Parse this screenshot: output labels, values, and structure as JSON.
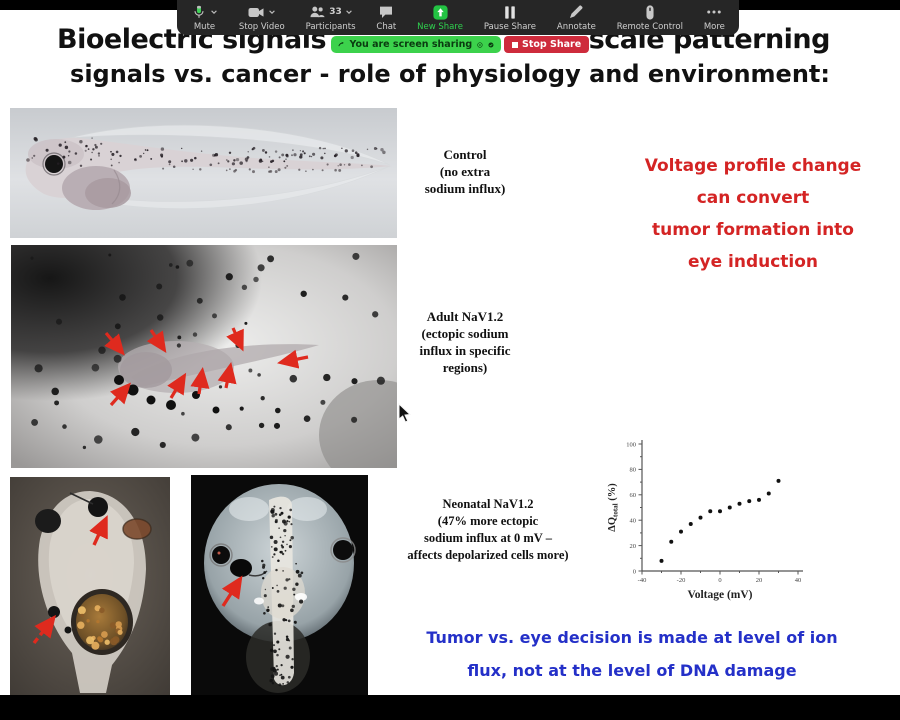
{
  "toolbar": {
    "items": [
      {
        "label": "Mute"
      },
      {
        "label": "Stop Video"
      },
      {
        "label": "Participants",
        "count": "33"
      },
      {
        "label": "Chat"
      },
      {
        "label": "New Share"
      },
      {
        "label": "Pause Share"
      },
      {
        "label": "Annotate"
      },
      {
        "label": "Remote Control"
      },
      {
        "label": "More"
      }
    ],
    "colors": {
      "background": "#262626",
      "label": "#cfcfcf",
      "new_share_green": "#2fd14f"
    }
  },
  "share_banner": {
    "message": "You are screen sharing",
    "stop_label": "Stop Share",
    "colors": {
      "banner_green": "#3cd24c",
      "stop_red": "#ce2b3c"
    }
  },
  "icons": {
    "microphone-icon": "svg-mic (green level)",
    "chevron-down-icon": "⌄",
    "video-camera-icon": "svg-camera",
    "participants-icon": "svg-two-people",
    "chat-bubble-icon": "svg-bubble",
    "share-screen-icon": "svg-green-square-up-arrow",
    "pause-icon": "❚❚",
    "pencil-icon": "svg-pencil",
    "remote-mouse-icon": "svg-mouse",
    "ellipsis-icon": "•••",
    "sharing-swoosh-icon": "svg-curved-arrow",
    "record-dot-icon": "◎",
    "check-circle-icon": "✔",
    "stop-square-icon": "■",
    "mouse-cursor": "svg-arrow-pointer"
  },
  "slide": {
    "title_line1_left": "Bioelectric signals",
    "title_line1_right": "-scale patterning",
    "title_line2": "signals vs. cancer - role of physiology and environment:",
    "control_label": "Control\n(no extra\nsodium influx)",
    "adult_label": "Adult NaV1.2\n(ectopic sodium\ninflux in specific\nregions)",
    "neonatal_label": "Neonatal NaV1.2\n(47% more ectopic\nsodium influx at 0 mV –\naffects depolarized cells more)",
    "red_note": "Voltage profile change\ncan convert\ntumor formation into\neye induction",
    "blue_note": "Tumor vs. eye decision is made at level of ion\nflux, not at the level of DNA damage",
    "colors": {
      "red_note": "#d42424",
      "blue_note": "#2430c8"
    },
    "images": [
      {
        "name": "tadpole-side-view",
        "description_visible": "control tadpole photo"
      },
      {
        "name": "melanocyte-field-with-arrows",
        "description_visible": "tissue with red arrows"
      },
      {
        "name": "tadpole-head-ectopic-tumor",
        "description_visible": "head with golden mass, red arrows"
      },
      {
        "name": "tadpole-head-dorsal-ectopic-eye",
        "description_visible": "dorsal head, red arrow"
      }
    ]
  },
  "chart_data": {
    "type": "scatter",
    "x": [
      -30,
      -25,
      -20,
      -15,
      -10,
      -5,
      0,
      5,
      10,
      15,
      20,
      25,
      30
    ],
    "y": [
      8,
      23,
      31,
      37,
      42,
      47,
      47,
      50,
      53,
      55,
      56,
      61,
      71
    ],
    "xlabel": "Voltage (mV)",
    "ylabel_delta": "ΔQ",
    "ylabel_sub": "total",
    "ylabel_unit": " (%)",
    "xlim": [
      -40,
      40
    ],
    "ylim": [
      0,
      100
    ],
    "xticks": [
      -40,
      -20,
      0,
      20,
      40
    ],
    "yticks": [
      0,
      20,
      40,
      60,
      80,
      100
    ],
    "grid": false,
    "legend": false,
    "marker_color": "#111111"
  }
}
